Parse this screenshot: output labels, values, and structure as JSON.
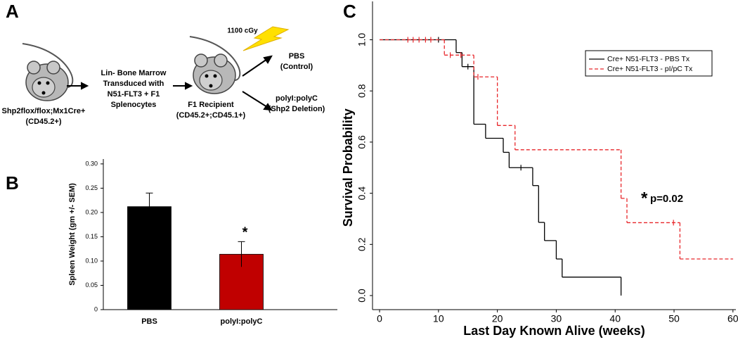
{
  "panel_labels": [
    "A",
    "B",
    "C"
  ],
  "diagram": {
    "donor": [
      "Shp2flox/flox;Mx1Cre+",
      "(CD45.2+)"
    ],
    "transduction": [
      "Lin- Bone Marrow",
      "Transduced with",
      "N51-FLT3 + F1",
      "Splenocytes"
    ],
    "recipient": [
      "F1 Recipient",
      "(CD45.2+;CD45.1+)"
    ],
    "irradiation": "1100 cGy",
    "arm_control": [
      "PBS",
      "(Control)"
    ],
    "arm_treatment": [
      "polyI:polyC",
      "(Shp2 Deletion)"
    ]
  },
  "chart_data": [
    {
      "type": "bar",
      "y_label": "Spleen Weight (gm +/- SEM)",
      "categories": [
        "PBS",
        "polyI:polyC"
      ],
      "values": [
        0.212,
        0.114
      ],
      "errors": [
        0.028,
        0.026
      ],
      "colors": [
        "#000000",
        "#c00000"
      ],
      "significance": [
        null,
        "*"
      ],
      "ylim": [
        0,
        0.31
      ],
      "yticks": [
        0,
        {
          "value": 0.05,
          "label": "0.05"
        },
        {
          "value": 0.1,
          "label": "0.10"
        },
        {
          "value": 0.15,
          "label": "0.15"
        },
        {
          "value": 0.2,
          "label": "0.20"
        },
        {
          "value": 0.25,
          "label": "0.25"
        },
        {
          "value": 0.3,
          "label": "0.30"
        }
      ]
    },
    {
      "type": "survival",
      "x_label": "Last Day Known Alive (weeks)",
      "y_label": "Survival Probability",
      "xlim": [
        -1.2,
        60.5
      ],
      "ylim": [
        -0.055,
        1.15
      ],
      "xticks": [
        0,
        10,
        20,
        30,
        40,
        50,
        60
      ],
      "yticks": [
        {
          "value": 0,
          "label": "0.0"
        },
        {
          "value": 0.2,
          "label": "0.2"
        },
        {
          "value": 0.4,
          "label": "0.4"
        },
        {
          "value": 0.6,
          "label": "0.6"
        },
        {
          "value": 0.8,
          "label": "0.8"
        },
        {
          "value": 1,
          "label": "1.0"
        }
      ],
      "series": [
        {
          "name": "Cre+ N51-FLT3 - PBS Tx",
          "color": "#000000",
          "dashed": false,
          "x": [
            0,
            13,
            14,
            16,
            18,
            21,
            22,
            26,
            27,
            28,
            30,
            31,
            41
          ],
          "values": [
            1,
            0.95,
            0.895,
            0.67,
            0.615,
            0.56,
            0.5,
            0.43,
            0.286,
            0.215,
            0.143,
            0.072,
            0
          ],
          "censored": {
            "x": [
              10,
              15,
              24
            ],
            "values": [
              1,
              0.895,
              0.5
            ]
          }
        },
        {
          "name": "Cre+ N51-FLT3 - pI/pC Tx",
          "color": "#e8262a",
          "dashed": true,
          "x": [
            0,
            11,
            16,
            20,
            23,
            41,
            42,
            51,
            60
          ],
          "values": [
            1,
            0.94,
            0.855,
            0.665,
            0.57,
            0.38,
            0.285,
            0.143,
            0.143
          ],
          "censored": {
            "x": [
              4.8,
              5.7,
              6.7,
              7.8,
              8.7,
              12,
              13.8,
              16.7,
              49.9
            ],
            "values": [
              1,
              1,
              1,
              1,
              1,
              0.94,
              0.94,
              0.855,
              0.285
            ]
          }
        }
      ],
      "annotation_mark": "*",
      "annotation": "p=0.02"
    }
  ]
}
